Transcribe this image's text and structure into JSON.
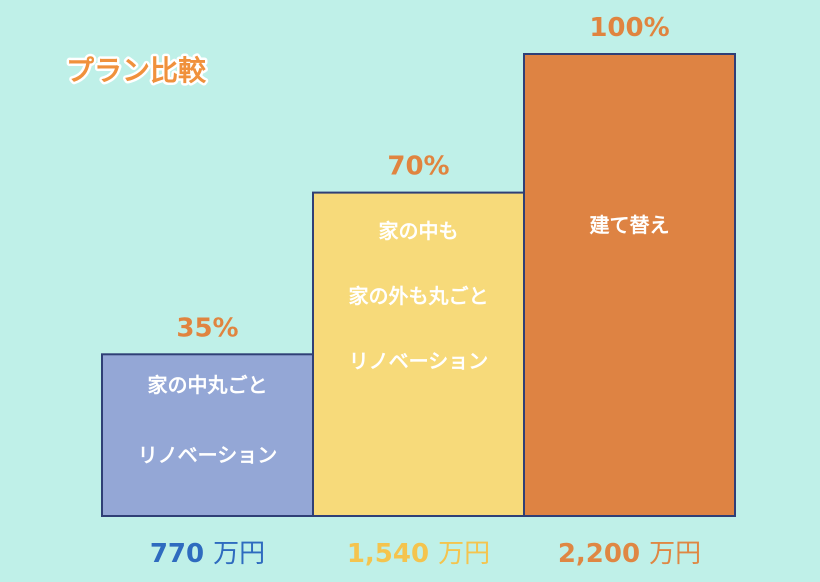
{
  "chart_data": {
    "type": "bar",
    "title": "プラン比較",
    "categories": [
      [
        "家の中丸ごと",
        "リノベーション"
      ],
      [
        "家の中も",
        "家の外も丸ごと",
        "リノベーション"
      ],
      [
        "建て替え"
      ]
    ],
    "values": [
      35,
      70,
      100
    ],
    "value_labels": [
      "35%",
      "70%",
      "100%"
    ],
    "prices": [
      {
        "amount": "770",
        "unit": "万円"
      },
      {
        "amount": "1,540",
        "unit": "万円"
      },
      {
        "amount": "2,200",
        "unit": "万円"
      }
    ],
    "ylim": [
      0,
      100
    ],
    "grid": false,
    "colors": {
      "bars": [
        "#94a7d6",
        "#f7da7a",
        "#de8343"
      ],
      "prices": [
        "#2e6bbf",
        "#f4c44e",
        "#df8743"
      ],
      "percent": "#e0843f",
      "background": "#bff0e8",
      "title": "#f0913c"
    }
  }
}
